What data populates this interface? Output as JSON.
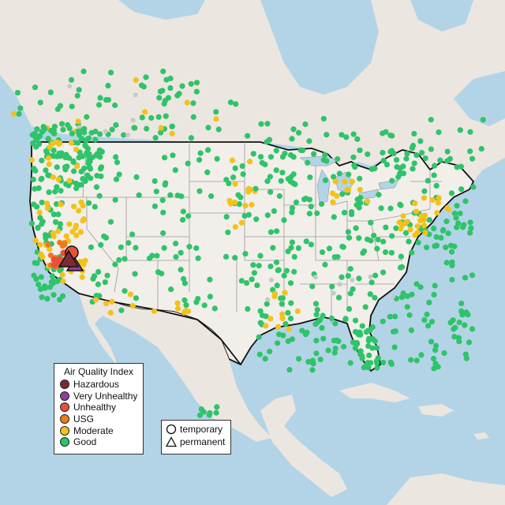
{
  "legend": {
    "title": "Air Quality Index",
    "categories": [
      {
        "label": "Hazardous",
        "color": "#7e2a35"
      },
      {
        "label": "Very Unhealthy",
        "color": "#8f3f97"
      },
      {
        "label": "Unhealthy",
        "color": "#e8503a"
      },
      {
        "label": "USG",
        "color": "#f07a1a"
      },
      {
        "label": "Moderate",
        "color": "#f3c21a"
      },
      {
        "label": "Good",
        "color": "#2fc36a"
      }
    ],
    "types": [
      {
        "label": "temporary",
        "shape": "circle-icon"
      },
      {
        "label": "permanent",
        "shape": "triangle-icon"
      }
    ]
  },
  "colors": {
    "water": "#b3d4e6",
    "land": "#ece6e0",
    "us_land": "#f2eee9",
    "state_lines": "#9a9a9a",
    "border": "#111111"
  }
}
